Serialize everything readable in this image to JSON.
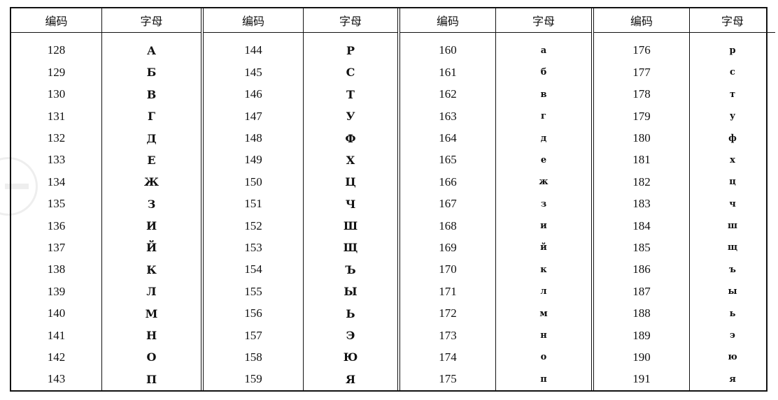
{
  "headers": {
    "code": "编码",
    "letter": "字母"
  },
  "groups": [
    {
      "codes": [
        "128",
        "129",
        "130",
        "131",
        "132",
        "133",
        "134",
        "135",
        "136",
        "137",
        "138",
        "139",
        "140",
        "141",
        "142",
        "143"
      ],
      "letters": [
        "А",
        "Б",
        "В",
        "Г",
        "Д",
        "Е",
        "Ж",
        "З",
        "И",
        "Й",
        "К",
        "Л",
        "М",
        "Н",
        "О",
        "П"
      ]
    },
    {
      "codes": [
        "144",
        "145",
        "146",
        "147",
        "148",
        "149",
        "150",
        "151",
        "152",
        "153",
        "154",
        "155",
        "156",
        "157",
        "158",
        "159"
      ],
      "letters": [
        "Р",
        "С",
        "Т",
        "У",
        "Ф",
        "Х",
        "Ц",
        "Ч",
        "Ш",
        "Щ",
        "Ъ",
        "Ы",
        "Ь",
        "Э",
        "Ю",
        "Я"
      ]
    },
    {
      "codes": [
        "160",
        "161",
        "162",
        "163",
        "164",
        "165",
        "166",
        "167",
        "168",
        "169",
        "170",
        "171",
        "172",
        "173",
        "174",
        "175"
      ],
      "letters": [
        "а",
        "б",
        "в",
        "г",
        "д",
        "е",
        "ж",
        "з",
        "и",
        "й",
        "к",
        "л",
        "м",
        "н",
        "о",
        "п"
      ]
    },
    {
      "codes": [
        "176",
        "177",
        "178",
        "179",
        "180",
        "181",
        "182",
        "183",
        "184",
        "185",
        "186",
        "187",
        "188",
        "189",
        "190",
        "191"
      ],
      "letters": [
        "р",
        "с",
        "т",
        "у",
        "ф",
        "х",
        "ц",
        "ч",
        "ш",
        "щ",
        "ъ",
        "ы",
        "ь",
        "э",
        "ю",
        "я"
      ]
    }
  ]
}
